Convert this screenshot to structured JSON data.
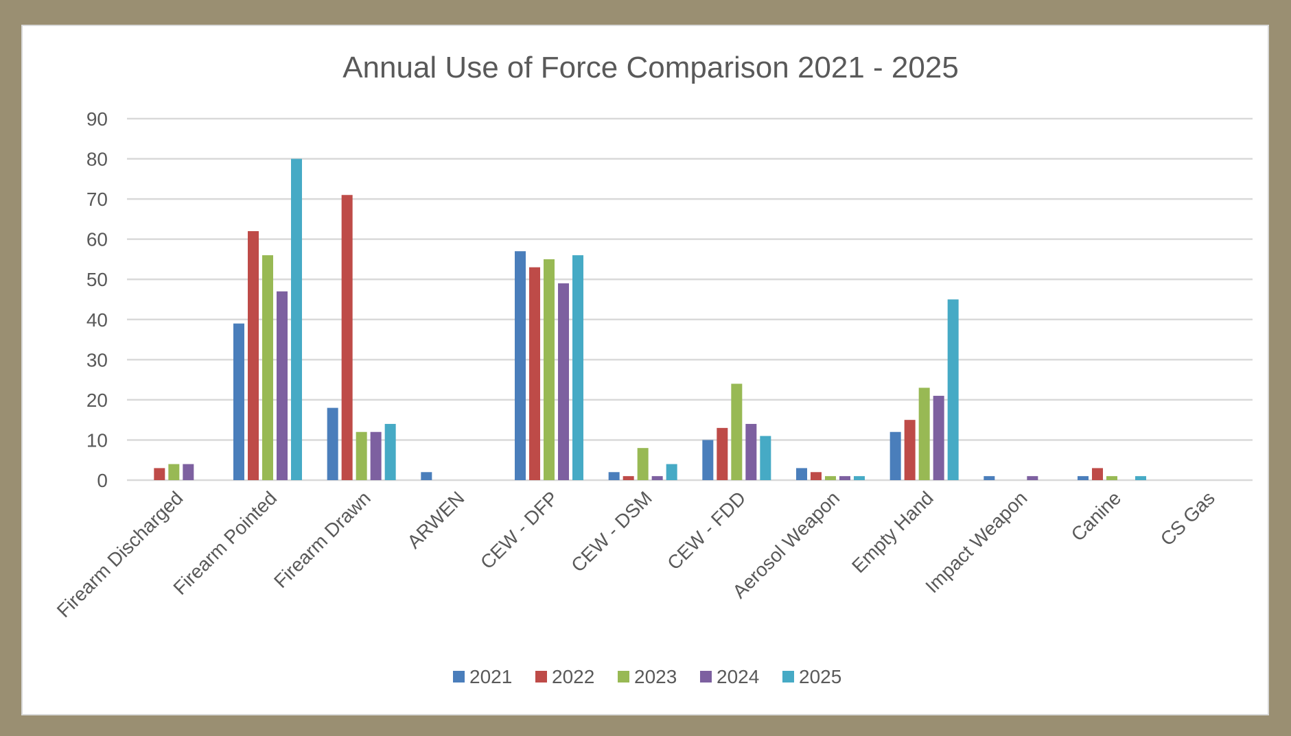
{
  "chart_data": {
    "type": "bar",
    "title": "Annual Use of Force Comparison 2021 - 2025",
    "xlabel": "",
    "ylabel": "",
    "ylim": [
      0,
      90
    ],
    "yticks": [
      0,
      10,
      20,
      30,
      40,
      50,
      60,
      70,
      80,
      90
    ],
    "grid": true,
    "legend_position": "bottom",
    "categories": [
      "Firearm Discharged",
      "Firearm Pointed",
      "Firearm Drawn",
      "ARWEN",
      "CEW - DFP",
      "CEW - DSM",
      "CEW - FDD",
      "Aerosol Weapon",
      "Empty Hand",
      "Impact Weapon",
      "Canine",
      "CS Gas"
    ],
    "series": [
      {
        "name": "2021",
        "color": "#4a7ebb",
        "values": [
          0,
          39,
          18,
          2,
          57,
          2,
          10,
          3,
          12,
          1,
          1,
          0
        ]
      },
      {
        "name": "2022",
        "color": "#be4b48",
        "values": [
          3,
          62,
          71,
          0,
          53,
          1,
          13,
          2,
          15,
          0,
          3,
          0
        ]
      },
      {
        "name": "2023",
        "color": "#98b954",
        "values": [
          4,
          56,
          12,
          0,
          55,
          8,
          24,
          1,
          23,
          0,
          1,
          0
        ]
      },
      {
        "name": "2024",
        "color": "#7d60a0",
        "values": [
          4,
          47,
          12,
          0,
          49,
          1,
          14,
          1,
          21,
          1,
          0,
          0
        ]
      },
      {
        "name": "2025",
        "color": "#46aac5",
        "values": [
          0,
          80,
          14,
          0,
          56,
          4,
          11,
          1,
          45,
          0,
          1,
          0
        ]
      }
    ]
  }
}
